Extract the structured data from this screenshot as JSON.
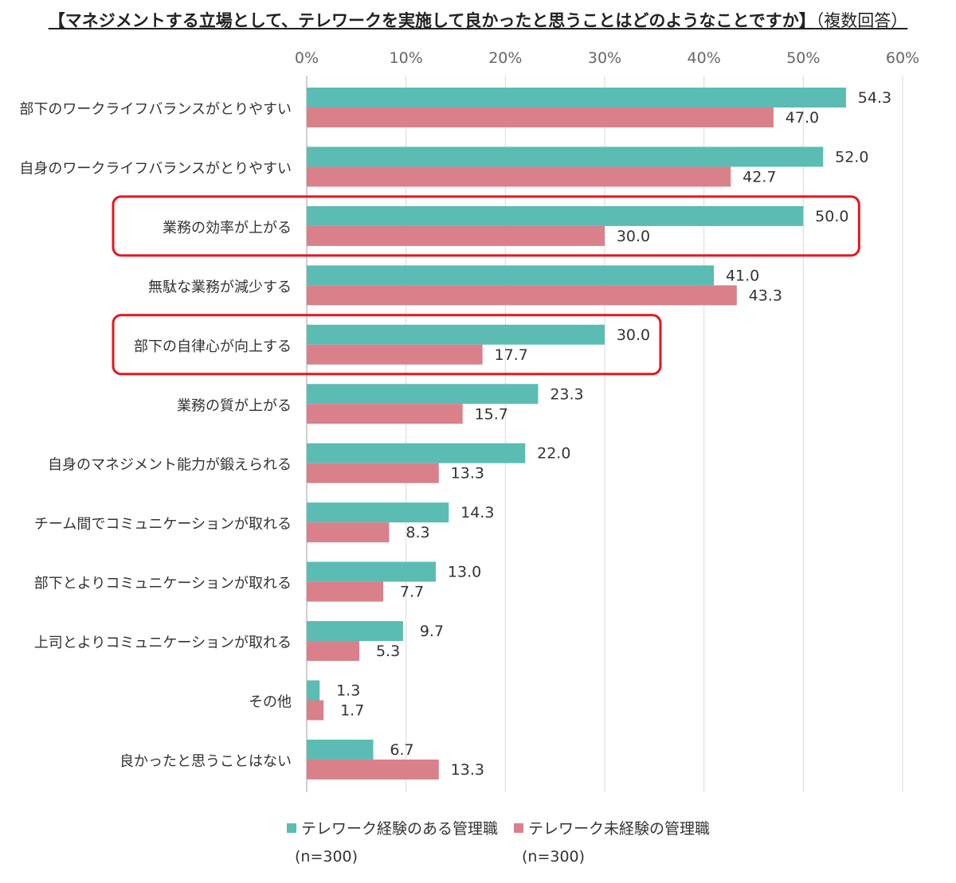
{
  "title": "【マネジメントする立場として、テレワークを実施して良かったと思うことはどのようなことですか】",
  "subtitle": "（複数回答）",
  "colors": {
    "series1": "#5bbcb3",
    "series2": "#d9808a",
    "highlight": "#e8141e",
    "grid": "#d9d9d9"
  },
  "chart_data": {
    "type": "bar",
    "orientation": "horizontal",
    "categories": [
      "部下のワークライフバランスがとりやすい",
      "自身のワークライフバランスがとりやすい",
      "業務の効率が上がる",
      "無駄な業務が減少する",
      "部下の自律心が向上する",
      "業務の質が上がる",
      "自身のマネジメント能力が鍛えられる",
      "チーム間でコミュニケーションが取れる",
      "部下とよりコミュニケーションが取れる",
      "上司とよりコミュニケーションが取れる",
      "その他",
      "良かったと思うことはない"
    ],
    "series": [
      {
        "name": "テレワーク経験のある管理職",
        "sample": "(n=300)",
        "values": [
          54.3,
          52.0,
          50.0,
          41.0,
          30.0,
          23.3,
          22.0,
          14.3,
          13.0,
          9.7,
          1.3,
          6.7
        ]
      },
      {
        "name": "テレワーク未経験の管理職",
        "sample": "(n=300)",
        "values": [
          47.0,
          42.7,
          30.0,
          43.3,
          17.7,
          15.7,
          13.3,
          8.3,
          7.7,
          5.3,
          1.7,
          13.3
        ]
      }
    ],
    "xlim": [
      0,
      60
    ],
    "xticks": [
      "0%",
      "10%",
      "20%",
      "30%",
      "40%",
      "50%",
      "60%"
    ],
    "grid": true,
    "x_axis_position": "top",
    "legend_position": "bottom",
    "highlighted_categories": [
      "業務の効率が上がる",
      "部下の自律心が向上する"
    ]
  }
}
